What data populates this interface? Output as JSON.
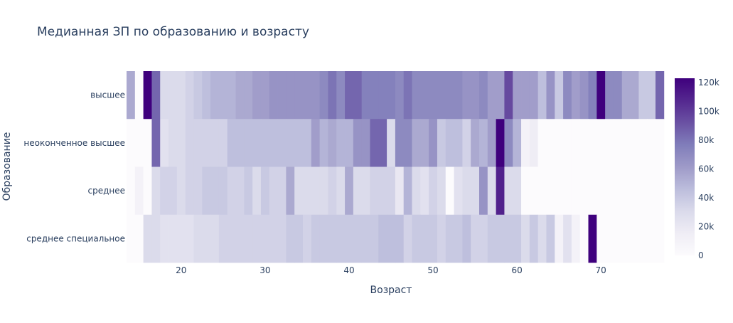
{
  "chart_data": {
    "type": "heatmap",
    "title": "Медианная ЗП по образованию и возрасту",
    "xlabel": "Возраст",
    "ylabel": "Образование",
    "x_range": [
      14,
      77
    ],
    "x_ticks": [
      20,
      30,
      40,
      50,
      60,
      70
    ],
    "x_tick_labels": [
      "20",
      "30",
      "40",
      "50",
      "60",
      "70"
    ],
    "categories_y": [
      "высшее",
      "неоконченное высшее",
      "среднее",
      "среднее специальное"
    ],
    "colorbar": {
      "min": 0,
      "max": 123000,
      "ticks": [
        0,
        20000,
        40000,
        60000,
        80000,
        100000,
        120000
      ],
      "tick_labels": [
        "0",
        "20k",
        "40k",
        "60k",
        "80k",
        "100k",
        "120k"
      ]
    },
    "colorscale": [
      [
        0.0,
        "#fcfbfd"
      ],
      [
        0.125,
        "#efedf5"
      ],
      [
        0.25,
        "#dadaeb"
      ],
      [
        0.375,
        "#bcbddc"
      ],
      [
        0.5,
        "#9e9ac8"
      ],
      [
        0.625,
        "#807dba"
      ],
      [
        0.75,
        "#6a51a3"
      ],
      [
        0.875,
        "#54278f"
      ],
      [
        1.0,
        "#3f007d"
      ]
    ],
    "series": [
      {
        "name": "высшее",
        "x_start": 14,
        "values": [
          55000,
          0,
          123000,
          85000,
          30000,
          30000,
          30000,
          35000,
          40000,
          45000,
          50000,
          50000,
          50000,
          55000,
          55000,
          60000,
          60000,
          65000,
          65000,
          65000,
          65000,
          65000,
          65000,
          70000,
          80000,
          70000,
          85000,
          85000,
          75000,
          75000,
          75000,
          75000,
          70000,
          80000,
          70000,
          70000,
          70000,
          70000,
          70000,
          70000,
          65000,
          65000,
          70000,
          60000,
          60000,
          95000,
          60000,
          60000,
          60000,
          45000,
          65000,
          40000,
          70000,
          60000,
          65000,
          75000,
          123000,
          70000,
          70000,
          55000,
          55000,
          40000,
          40000,
          85000
        ]
      },
      {
        "name": "неоконченное высшее",
        "x_start": 14,
        "values": [
          0,
          0,
          0,
          85000,
          25000,
          30000,
          30000,
          35000,
          35000,
          35000,
          35000,
          35000,
          45000,
          45000,
          45000,
          45000,
          45000,
          45000,
          45000,
          45000,
          45000,
          45000,
          60000,
          50000,
          55000,
          50000,
          50000,
          65000,
          65000,
          85000,
          85000,
          30000,
          70000,
          70000,
          55000,
          55000,
          65000,
          40000,
          45000,
          45000,
          35000,
          55000,
          50000,
          60000,
          123000,
          70000,
          50000,
          10000,
          15000,
          0,
          0,
          0,
          0,
          0,
          0,
          0,
          0,
          0,
          0,
          0,
          0,
          0,
          0,
          0
        ]
      },
      {
        "name": "среднее",
        "x_start": 14,
        "values": [
          0,
          10000,
          0,
          30000,
          35000,
          35000,
          30000,
          35000,
          35000,
          40000,
          40000,
          40000,
          35000,
          35000,
          40000,
          30000,
          40000,
          35000,
          35000,
          55000,
          30000,
          30000,
          30000,
          30000,
          35000,
          30000,
          55000,
          30000,
          30000,
          35000,
          35000,
          35000,
          20000,
          50000,
          30000,
          25000,
          35000,
          30000,
          0,
          25000,
          30000,
          30000,
          65000,
          30000,
          110000,
          30000,
          30000,
          0,
          0,
          0,
          0,
          0,
          0,
          0,
          0,
          0,
          0,
          0,
          0,
          0,
          0,
          0,
          0,
          0
        ]
      },
      {
        "name": "среднее специальное",
        "x_start": 14,
        "values": [
          0,
          0,
          30000,
          30000,
          25000,
          25000,
          25000,
          25000,
          30000,
          30000,
          30000,
          35000,
          35000,
          35000,
          35000,
          35000,
          35000,
          35000,
          35000,
          40000,
          40000,
          35000,
          40000,
          40000,
          40000,
          40000,
          40000,
          40000,
          40000,
          40000,
          45000,
          45000,
          45000,
          35000,
          40000,
          40000,
          40000,
          35000,
          40000,
          40000,
          45000,
          35000,
          35000,
          40000,
          40000,
          40000,
          40000,
          30000,
          40000,
          30000,
          40000,
          10000,
          25000,
          10000,
          0,
          123000,
          0,
          0,
          0,
          0,
          0,
          0,
          0,
          0
        ]
      }
    ]
  }
}
